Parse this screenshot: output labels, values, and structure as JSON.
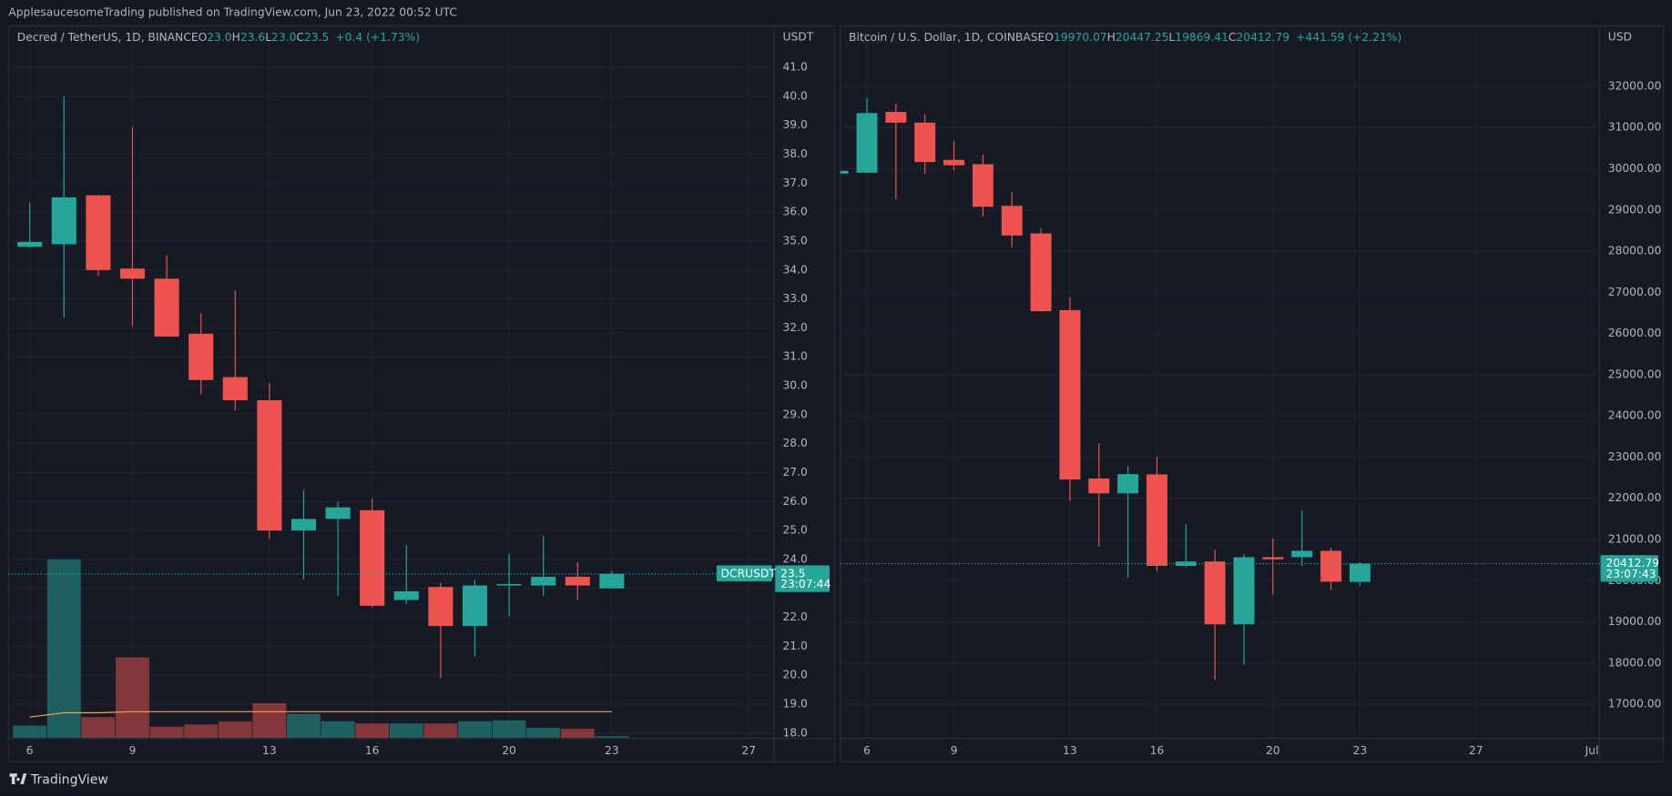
{
  "header": {
    "published": "ApplesaucesomeTrading published on TradingView.com, Jun 23, 2022 00:52 UTC"
  },
  "footer": {
    "brand": "TradingView"
  },
  "chart_data": [
    {
      "type": "candlestick",
      "title": "Decred / TetherUS, 1D, BINANCE",
      "legend": {
        "O": "23.0",
        "H": "23.6",
        "L": "23.0",
        "C": "23.5",
        "change": "+0.4 (+1.73%)"
      },
      "unit": "USDT",
      "symbol_tag": "DCRUSDT",
      "countdown": "23:07:44",
      "x": [
        6,
        7,
        8,
        9,
        10,
        11,
        12,
        13,
        14,
        15,
        16,
        17,
        18,
        19,
        20,
        21,
        22,
        23
      ],
      "open": [
        34.8,
        34.89,
        36.58,
        34.05,
        33.7,
        31.8,
        30.3,
        29.5,
        25.0,
        25.4,
        25.7,
        22.6,
        23.05,
        21.7,
        23.1,
        23.1,
        23.4,
        23.0
      ],
      "high": [
        36.33,
        40.0,
        36.6,
        38.94,
        34.5,
        32.5,
        33.3,
        30.1,
        26.4,
        26.0,
        26.1,
        24.5,
        23.2,
        23.3,
        24.2,
        24.8,
        23.9,
        23.6
      ],
      "low": [
        34.78,
        32.35,
        33.8,
        32.06,
        31.7,
        29.7,
        29.15,
        24.7,
        23.3,
        22.75,
        22.35,
        22.45,
        19.9,
        20.65,
        22.05,
        22.75,
        22.6,
        23.0
      ],
      "close": [
        34.97,
        36.51,
        34.0,
        33.7,
        31.7,
        30.2,
        29.5,
        25.0,
        25.4,
        25.8,
        22.4,
        22.9,
        21.7,
        23.1,
        23.15,
        23.4,
        23.1,
        23.5
      ],
      "volume": [
        12,
        168,
        20,
        76,
        11,
        13,
        16,
        33,
        23,
        16,
        14,
        14,
        14,
        16,
        17,
        10,
        9,
        2
      ],
      "volume_ma": [
        20,
        24,
        24,
        25,
        25,
        25,
        25,
        25,
        25,
        25,
        25,
        25,
        25,
        25,
        25,
        25,
        25,
        25
      ],
      "up_color": "#26a69a",
      "down_color": "#ef5350",
      "ma_color": "#f5a356",
      "xlim": [
        5.38,
        27.74
      ],
      "xticks": [
        6,
        9,
        13,
        16,
        20,
        23,
        27
      ],
      "ylim": [
        17.82,
        42.44
      ],
      "yticks": [
        {
          "value": 18,
          "label": "18.0"
        },
        {
          "value": 19,
          "label": "19.0"
        },
        {
          "value": 20,
          "label": "20.0"
        },
        {
          "value": 21,
          "label": "21.0"
        },
        {
          "value": 22,
          "label": "22.0"
        },
        {
          "value": 23,
          "label": "23.0"
        },
        {
          "value": 24,
          "label": "24.0"
        },
        {
          "value": 25,
          "label": "25.0"
        },
        {
          "value": 26,
          "label": "26.0"
        },
        {
          "value": 27,
          "label": "27.0"
        },
        {
          "value": 28,
          "label": "28.0"
        },
        {
          "value": 29,
          "label": "29.0"
        },
        {
          "value": 30,
          "label": "30.0"
        },
        {
          "value": 31,
          "label": "31.0"
        },
        {
          "value": 32,
          "label": "32.0"
        },
        {
          "value": 33,
          "label": "33.0"
        },
        {
          "value": 34,
          "label": "34.0"
        },
        {
          "value": 35,
          "label": "35.0"
        },
        {
          "value": 36,
          "label": "36.0"
        },
        {
          "value": 37,
          "label": "37.0"
        },
        {
          "value": 38,
          "label": "38.0"
        },
        {
          "value": 39,
          "label": "39.0"
        },
        {
          "value": 40,
          "label": "40.0"
        },
        {
          "value": 41,
          "label": "41.0"
        }
      ],
      "grid": true
    },
    {
      "type": "candlestick",
      "title": "Bitcoin / U.S. Dollar, 1D, COINBASE",
      "legend": {
        "O": "19970.07",
        "H": "20447.25",
        "L": "19869.41",
        "C": "20412.79",
        "change": "+441.59 (+2.21%)"
      },
      "unit": "USD",
      "countdown": "23:07:43",
      "x": [
        5,
        6,
        7,
        8,
        9,
        10,
        11,
        12,
        13,
        14,
        15,
        16,
        17,
        18,
        19,
        20,
        21,
        22,
        23
      ],
      "open": [
        29880,
        29904,
        31380,
        31120,
        30215,
        30110,
        29100,
        28430,
        26568,
        22480,
        22120,
        22580,
        20360,
        20465,
        18940,
        20570,
        20570,
        20725,
        19970.07
      ],
      "high": [
        29960,
        31714,
        31585,
        31330,
        30680,
        30345,
        29440,
        28560,
        26880,
        23335,
        22790,
        23000,
        21370,
        20750,
        20650,
        21030,
        21710,
        20800,
        20447.25
      ],
      "low": [
        29870,
        29890,
        29258,
        29878,
        29955,
        28845,
        28094,
        26530,
        21940,
        20830,
        20077,
        20230,
        20330,
        17600,
        17960,
        19660,
        20360,
        19770,
        19869.41
      ],
      "close": [
        29950,
        31352,
        31120,
        30163,
        30085,
        29077,
        28380,
        26542,
        22456,
        22120,
        22586,
        20360,
        20465,
        18940,
        20570,
        20517,
        20725,
        19975,
        20412.79
      ],
      "up_color": "#26a69a",
      "down_color": "#ef5350",
      "xlim": [
        5.08,
        31.26
      ],
      "xticks": [
        6,
        9,
        13,
        16,
        20,
        23,
        27,
        {
          "value": 31,
          "label": "Jul"
        }
      ],
      "ylim": [
        16172,
        33473
      ],
      "yticks": [
        {
          "value": 17000,
          "label": "17000.00"
        },
        {
          "value": 18000,
          "label": "18000.00"
        },
        {
          "value": 19000,
          "label": "19000.00"
        },
        {
          "value": 20000,
          "label": "20000.00"
        },
        {
          "value": 21000,
          "label": "21000.00"
        },
        {
          "value": 22000,
          "label": "22000.00"
        },
        {
          "value": 23000,
          "label": "23000.00"
        },
        {
          "value": 24000,
          "label": "24000.00"
        },
        {
          "value": 25000,
          "label": "25000.00"
        },
        {
          "value": 26000,
          "label": "26000.00"
        },
        {
          "value": 27000,
          "label": "27000.00"
        },
        {
          "value": 28000,
          "label": "28000.00"
        },
        {
          "value": 29000,
          "label": "29000.00"
        },
        {
          "value": 30000,
          "label": "30000.00"
        },
        {
          "value": 31000,
          "label": "31000.00"
        },
        {
          "value": 32000,
          "label": "32000.00"
        }
      ],
      "grid": true
    }
  ]
}
